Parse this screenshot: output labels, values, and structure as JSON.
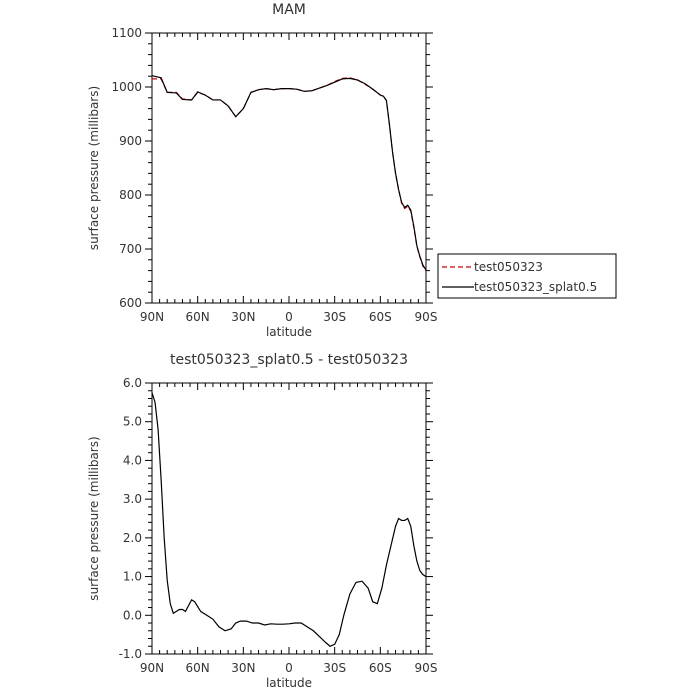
{
  "chart_data": [
    {
      "type": "line",
      "title": "MAM",
      "xlabel": "latitude",
      "ylabel": "surface pressure (millibars)",
      "x_tick_values": [
        -90,
        -60,
        -30,
        0,
        30,
        60,
        90
      ],
      "x_tick_labels": [
        "90N",
        "60N",
        "30N",
        "0",
        "30S",
        "60S",
        "90S"
      ],
      "xlim": [
        -90,
        90
      ],
      "y_tick_values": [
        600,
        700,
        800,
        900,
        1000,
        1100
      ],
      "y_tick_labels": [
        "600",
        "700",
        "800",
        "900",
        "1000",
        "1100"
      ],
      "ylim": [
        600,
        1100
      ],
      "grid": false,
      "legend_placement": "outside-right",
      "series": [
        {
          "name": "test050323",
          "color": "#cc0000",
          "dash": "dashed",
          "points": [
            [
              -90,
              1015
            ],
            [
              -84,
              1015
            ],
            [
              -80,
              990
            ],
            [
              -74,
              990
            ],
            [
              -70,
              978
            ],
            [
              -64,
              976
            ],
            [
              -60,
              990
            ],
            [
              -55,
              985
            ],
            [
              -50,
              976
            ],
            [
              -45,
              976
            ],
            [
              -40,
              965
            ],
            [
              -35,
              945
            ],
            [
              -30,
              960
            ],
            [
              -25,
              990
            ],
            [
              -20,
              995
            ],
            [
              -15,
              997
            ],
            [
              -10,
              995
            ],
            [
              -5,
              997
            ],
            [
              0,
              997
            ],
            [
              5,
              996
            ],
            [
              10,
              992
            ],
            [
              15,
              993
            ],
            [
              20,
              998
            ],
            [
              25,
              1003
            ],
            [
              30,
              1010
            ],
            [
              35,
              1016
            ],
            [
              40,
              1017
            ],
            [
              45,
              1013
            ],
            [
              50,
              1005
            ],
            [
              55,
              996
            ],
            [
              60,
              985
            ],
            [
              62,
              983
            ],
            [
              64,
              975
            ],
            [
              66,
              930
            ],
            [
              68,
              880
            ],
            [
              70,
              840
            ],
            [
              72,
              810
            ],
            [
              74,
              785
            ],
            [
              76,
              775
            ],
            [
              78,
              779
            ],
            [
              80,
              770
            ],
            [
              82,
              740
            ],
            [
              84,
              705
            ],
            [
              86,
              685
            ],
            [
              88,
              668
            ],
            [
              90,
              660
            ]
          ]
        },
        {
          "name": "test050323_splat0.5",
          "color": "#000000",
          "dash": "solid",
          "points": [
            [
              -90,
              1021
            ],
            [
              -84,
              1017
            ],
            [
              -80,
              990
            ],
            [
              -74,
              989
            ],
            [
              -70,
              977
            ],
            [
              -64,
              976
            ],
            [
              -60,
              991
            ],
            [
              -55,
              985
            ],
            [
              -50,
              976
            ],
            [
              -45,
              976
            ],
            [
              -40,
              965
            ],
            [
              -35,
              945
            ],
            [
              -30,
              960
            ],
            [
              -25,
              990
            ],
            [
              -20,
              995
            ],
            [
              -15,
              997
            ],
            [
              -10,
              995
            ],
            [
              -5,
              997
            ],
            [
              0,
              997
            ],
            [
              5,
              996
            ],
            [
              10,
              992
            ],
            [
              15,
              993
            ],
            [
              20,
              998
            ],
            [
              25,
              1003
            ],
            [
              30,
              1009
            ],
            [
              35,
              1015
            ],
            [
              40,
              1016
            ],
            [
              45,
              1013
            ],
            [
              50,
              1006
            ],
            [
              55,
              996
            ],
            [
              60,
              985
            ],
            [
              62,
              983
            ],
            [
              64,
              975
            ],
            [
              66,
              930
            ],
            [
              68,
              880
            ],
            [
              70,
              840
            ],
            [
              72,
              810
            ],
            [
              74,
              786
            ],
            [
              76,
              777
            ],
            [
              78,
              781
            ],
            [
              80,
              772
            ],
            [
              82,
              742
            ],
            [
              84,
              706
            ],
            [
              86,
              686
            ],
            [
              88,
              670
            ],
            [
              90,
              661
            ]
          ]
        }
      ]
    },
    {
      "type": "line",
      "title": "test050323_splat0.5 - test050323",
      "xlabel": "latitude",
      "ylabel": "surface pressure (millibars)",
      "x_tick_values": [
        -90,
        -60,
        -30,
        0,
        30,
        60,
        90
      ],
      "x_tick_labels": [
        "90N",
        "60N",
        "30N",
        "0",
        "30S",
        "60S",
        "90S"
      ],
      "xlim": [
        -90,
        90
      ],
      "y_tick_values": [
        -1,
        0,
        1,
        2,
        3,
        4,
        5,
        6
      ],
      "y_tick_labels": [
        "-1.0",
        "0.0",
        "1.0",
        "2.0",
        "3.0",
        "4.0",
        "5.0",
        "6.0"
      ],
      "ylim": [
        -1,
        6
      ],
      "grid": false,
      "series": [
        {
          "color": "#000000",
          "dash": "solid",
          "points": [
            [
              -90,
              5.75
            ],
            [
              -88,
              5.5
            ],
            [
              -86,
              4.8
            ],
            [
              -84,
              3.5
            ],
            [
              -82,
              2.0
            ],
            [
              -80,
              0.9
            ],
            [
              -78,
              0.3
            ],
            [
              -76,
              0.05
            ],
            [
              -74,
              0.1
            ],
            [
              -72,
              0.15
            ],
            [
              -70,
              0.15
            ],
            [
              -68,
              0.1
            ],
            [
              -66,
              0.25
            ],
            [
              -64,
              0.4
            ],
            [
              -62,
              0.35
            ],
            [
              -58,
              0.1
            ],
            [
              -54,
              0.0
            ],
            [
              -50,
              -0.1
            ],
            [
              -46,
              -0.3
            ],
            [
              -42,
              -0.4
            ],
            [
              -38,
              -0.35
            ],
            [
              -35,
              -0.2
            ],
            [
              -32,
              -0.15
            ],
            [
              -28,
              -0.15
            ],
            [
              -24,
              -0.2
            ],
            [
              -20,
              -0.2
            ],
            [
              -16,
              -0.25
            ],
            [
              -12,
              -0.22
            ],
            [
              -8,
              -0.23
            ],
            [
              -4,
              -0.23
            ],
            [
              0,
              -0.22
            ],
            [
              4,
              -0.2
            ],
            [
              8,
              -0.2
            ],
            [
              12,
              -0.3
            ],
            [
              16,
              -0.4
            ],
            [
              20,
              -0.55
            ],
            [
              24,
              -0.7
            ],
            [
              27,
              -0.8
            ],
            [
              30,
              -0.75
            ],
            [
              33,
              -0.5
            ],
            [
              36,
              0.0
            ],
            [
              40,
              0.55
            ],
            [
              44,
              0.85
            ],
            [
              48,
              0.88
            ],
            [
              52,
              0.7
            ],
            [
              55,
              0.35
            ],
            [
              58,
              0.3
            ],
            [
              61,
              0.7
            ],
            [
              64,
              1.3
            ],
            [
              67,
              1.8
            ],
            [
              70,
              2.3
            ],
            [
              72,
              2.5
            ],
            [
              74,
              2.45
            ],
            [
              76,
              2.45
            ],
            [
              78,
              2.5
            ],
            [
              80,
              2.3
            ],
            [
              82,
              1.8
            ],
            [
              84,
              1.4
            ],
            [
              86,
              1.15
            ],
            [
              88,
              1.05
            ],
            [
              90,
              1.0
            ]
          ]
        }
      ]
    }
  ]
}
